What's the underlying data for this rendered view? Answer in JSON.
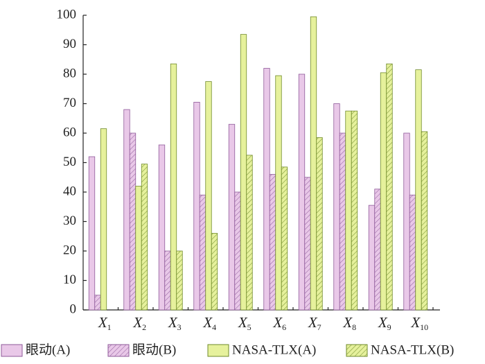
{
  "chart_data": {
    "type": "bar",
    "categories": [
      "X1",
      "X2",
      "X3",
      "X4",
      "X5",
      "X6",
      "X7",
      "X8",
      "X9",
      "X10"
    ],
    "series": [
      {
        "name": "眼动(A)",
        "color": "#e9c8e8",
        "hatch": false,
        "values": [
          52,
          68,
          56,
          70.5,
          63,
          82,
          80,
          70,
          35.5,
          60
        ]
      },
      {
        "name": "眼动(B)",
        "color": "#e9c8e8",
        "hatch": true,
        "values": [
          5,
          60,
          20,
          39,
          40,
          46,
          45,
          60,
          41,
          39
        ]
      },
      {
        "name": "NASA-TLX(A)",
        "color": "#e6f19c",
        "hatch": false,
        "values": [
          61.5,
          42,
          83.5,
          77.5,
          93.5,
          79.5,
          99.5,
          67.5,
          80.5,
          81.5
        ]
      },
      {
        "name": "NASA-TLX(B)",
        "color": "#e6f19c",
        "hatch": true,
        "values": [
          null,
          49.5,
          20,
          26,
          52.5,
          48.5,
          58.5,
          67.5,
          83.5,
          60.5
        ]
      }
    ],
    "ylim": [
      0,
      100
    ],
    "yticks": [
      0,
      10,
      20,
      30,
      40,
      50,
      60,
      70,
      80,
      90,
      100
    ]
  }
}
